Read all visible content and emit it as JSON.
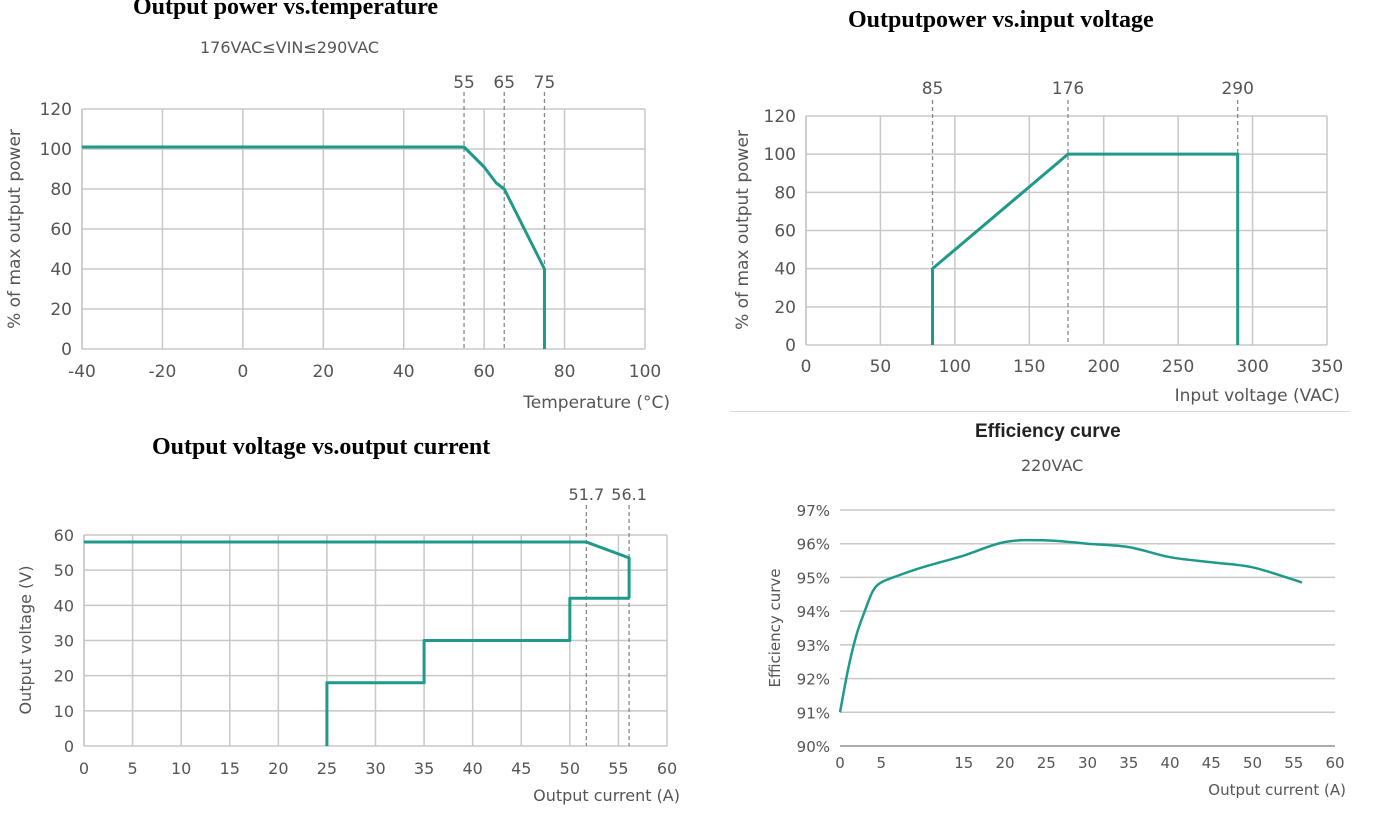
{
  "colors": {
    "line": "#1f9a8a",
    "grid": "#c8c8c8",
    "text": "#555555"
  },
  "chart_data": [
    {
      "id": "temp",
      "type": "line",
      "title": "Output power vs.temperature",
      "subtitle": "176VAC≤VIN≤290VAC",
      "xlabel": "Temperature (°C)",
      "ylabel": "% of max output power",
      "xlim": [
        -40,
        100
      ],
      "ylim": [
        0,
        120
      ],
      "xticks": [
        -40,
        -20,
        0,
        20,
        40,
        60,
        80,
        100
      ],
      "yticks": [
        0,
        20,
        40,
        60,
        80,
        100,
        120
      ],
      "xgrid": [
        -40,
        -20,
        0,
        20,
        40,
        60,
        80,
        100
      ],
      "ygrid": [
        20,
        40,
        60,
        80,
        100,
        120
      ],
      "markers": [
        55,
        65,
        75
      ],
      "series": [
        {
          "x": [
            -40,
            55,
            60,
            63,
            65,
            75,
            75
          ],
          "y": [
            101,
            101,
            91,
            83,
            80,
            40,
            0
          ]
        }
      ]
    },
    {
      "id": "vin",
      "type": "line",
      "title": "Outputpower vs.input voltage",
      "xlabel": "Input voltage (VAC)",
      "ylabel": "% of max output power",
      "xlim": [
        0,
        350
      ],
      "ylim": [
        0,
        120
      ],
      "xticks": [
        0,
        50,
        100,
        150,
        200,
        250,
        300,
        350
      ],
      "yticks": [
        0,
        20,
        40,
        60,
        80,
        100,
        120
      ],
      "xgrid": [
        0,
        50,
        100,
        150,
        200,
        250,
        300,
        350
      ],
      "ygrid": [
        20,
        40,
        60,
        80,
        100,
        120
      ],
      "markers": [
        85,
        176,
        290
      ],
      "series": [
        {
          "x": [
            85,
            85,
            176,
            290,
            290
          ],
          "y": [
            0,
            40,
            100,
            100,
            0
          ]
        }
      ]
    },
    {
      "id": "vout",
      "type": "line",
      "title": "Output voltage vs.output current",
      "xlabel": "Output current (A)",
      "ylabel": "Output voltage (V)",
      "xlim": [
        0,
        60
      ],
      "ylim": [
        0,
        60
      ],
      "xticks": [
        0,
        5,
        10,
        15,
        20,
        25,
        30,
        35,
        40,
        45,
        50,
        55,
        60
      ],
      "yticks": [
        0,
        10,
        20,
        30,
        40,
        50,
        60
      ],
      "xgrid": [
        0,
        5,
        10,
        15,
        20,
        25,
        30,
        35,
        40,
        45,
        50,
        55,
        60
      ],
      "ygrid": [
        10,
        20,
        30,
        40,
        50,
        60
      ],
      "markers": [
        51.7,
        56.1
      ],
      "series": [
        {
          "x": [
            0,
            51.7,
            56.1,
            56.1
          ],
          "y": [
            58,
            58,
            53.5,
            42
          ]
        },
        {
          "x": [
            56.1,
            50,
            50,
            35,
            35,
            25,
            25
          ],
          "y": [
            42,
            42,
            30,
            30,
            18,
            18,
            0
          ]
        }
      ]
    },
    {
      "id": "eff",
      "type": "line",
      "title": "Efficiency curve",
      "subtitle": "220VAC",
      "xlabel": "Output current (A)",
      "ylabel": "Efficiency curve",
      "xlim": [
        0,
        60
      ],
      "ylim": [
        90,
        97
      ],
      "xticks": [
        0,
        5,
        15,
        20,
        25,
        30,
        35,
        40,
        45,
        50,
        55,
        60
      ],
      "yticks": [
        90,
        91,
        92,
        93,
        94,
        95,
        96,
        97
      ],
      "ytickSuffix": "%",
      "xgrid": [],
      "ygrid": [
        90,
        91,
        92,
        93,
        94,
        95,
        96,
        97
      ],
      "markers": [],
      "smooth": true,
      "series": [
        {
          "x": [
            0,
            1,
            2,
            3,
            4,
            5,
            7,
            10,
            15,
            20,
            25,
            30,
            35,
            40,
            45,
            50,
            56
          ],
          "y": [
            91.0,
            92.3,
            93.3,
            94.0,
            94.6,
            94.85,
            95.05,
            95.3,
            95.65,
            96.05,
            96.1,
            96.0,
            95.9,
            95.6,
            95.45,
            95.3,
            94.85
          ]
        }
      ]
    }
  ]
}
